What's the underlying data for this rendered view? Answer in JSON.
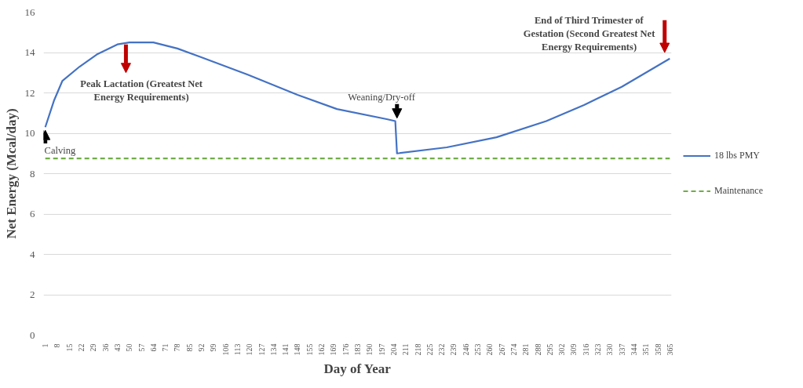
{
  "chart_data": {
    "type": "line",
    "xlabel": "Day of Year",
    "ylabel": "Net Energy (Mcal/day)",
    "series": [
      {
        "name": "18 lbs PMY",
        "color": "#4472c4",
        "line_style": "solid",
        "x": [
          1,
          6,
          11,
          21,
          31,
          43,
          50,
          64,
          78,
          94,
          119,
          148,
          171,
          200,
          205,
          206,
          235,
          264,
          293,
          315,
          337,
          365
        ],
        "values": [
          10.3,
          11.6,
          12.6,
          13.3,
          13.9,
          14.4,
          14.5,
          14.5,
          14.2,
          13.7,
          12.9,
          11.9,
          11.2,
          10.7,
          10.6,
          9.0,
          9.3,
          9.8,
          10.6,
          11.4,
          12.3,
          13.7
        ]
      },
      {
        "name": "Maintenance",
        "color": "#70ad47",
        "line_style": "dashed",
        "x": [
          1,
          365
        ],
        "values": [
          8.75,
          8.75
        ]
      }
    ],
    "xlim": [
      0,
      366
    ],
    "ylim": [
      0,
      16
    ],
    "xticks": [
      1,
      8,
      15,
      22,
      29,
      36,
      43,
      50,
      57,
      64,
      71,
      78,
      85,
      92,
      99,
      106,
      113,
      120,
      127,
      134,
      141,
      148,
      155,
      162,
      169,
      176,
      183,
      190,
      197,
      204,
      211,
      218,
      225,
      232,
      239,
      246,
      253,
      260,
      267,
      274,
      281,
      288,
      295,
      302,
      309,
      316,
      323,
      330,
      337,
      344,
      351,
      358,
      365
    ],
    "yticks": [
      0,
      2,
      4,
      6,
      8,
      10,
      12,
      14,
      16
    ],
    "grid": "y",
    "legend": "right",
    "marker": "none",
    "annotations": [
      {
        "text": "Calving",
        "x": 1,
        "y": 10.3
      },
      {
        "text": "Peak Lactation (Greatest Net\nEnergy Requirements)",
        "x": 50,
        "y": 14.4
      },
      {
        "text": "Weaning/Dry-off",
        "x": 205,
        "y": 10.6
      },
      {
        "text": "End of Third Trimester of\nGestation (Second Greatest Net\nEnergy Requirements)",
        "x": 365,
        "y": 13.7
      }
    ]
  }
}
